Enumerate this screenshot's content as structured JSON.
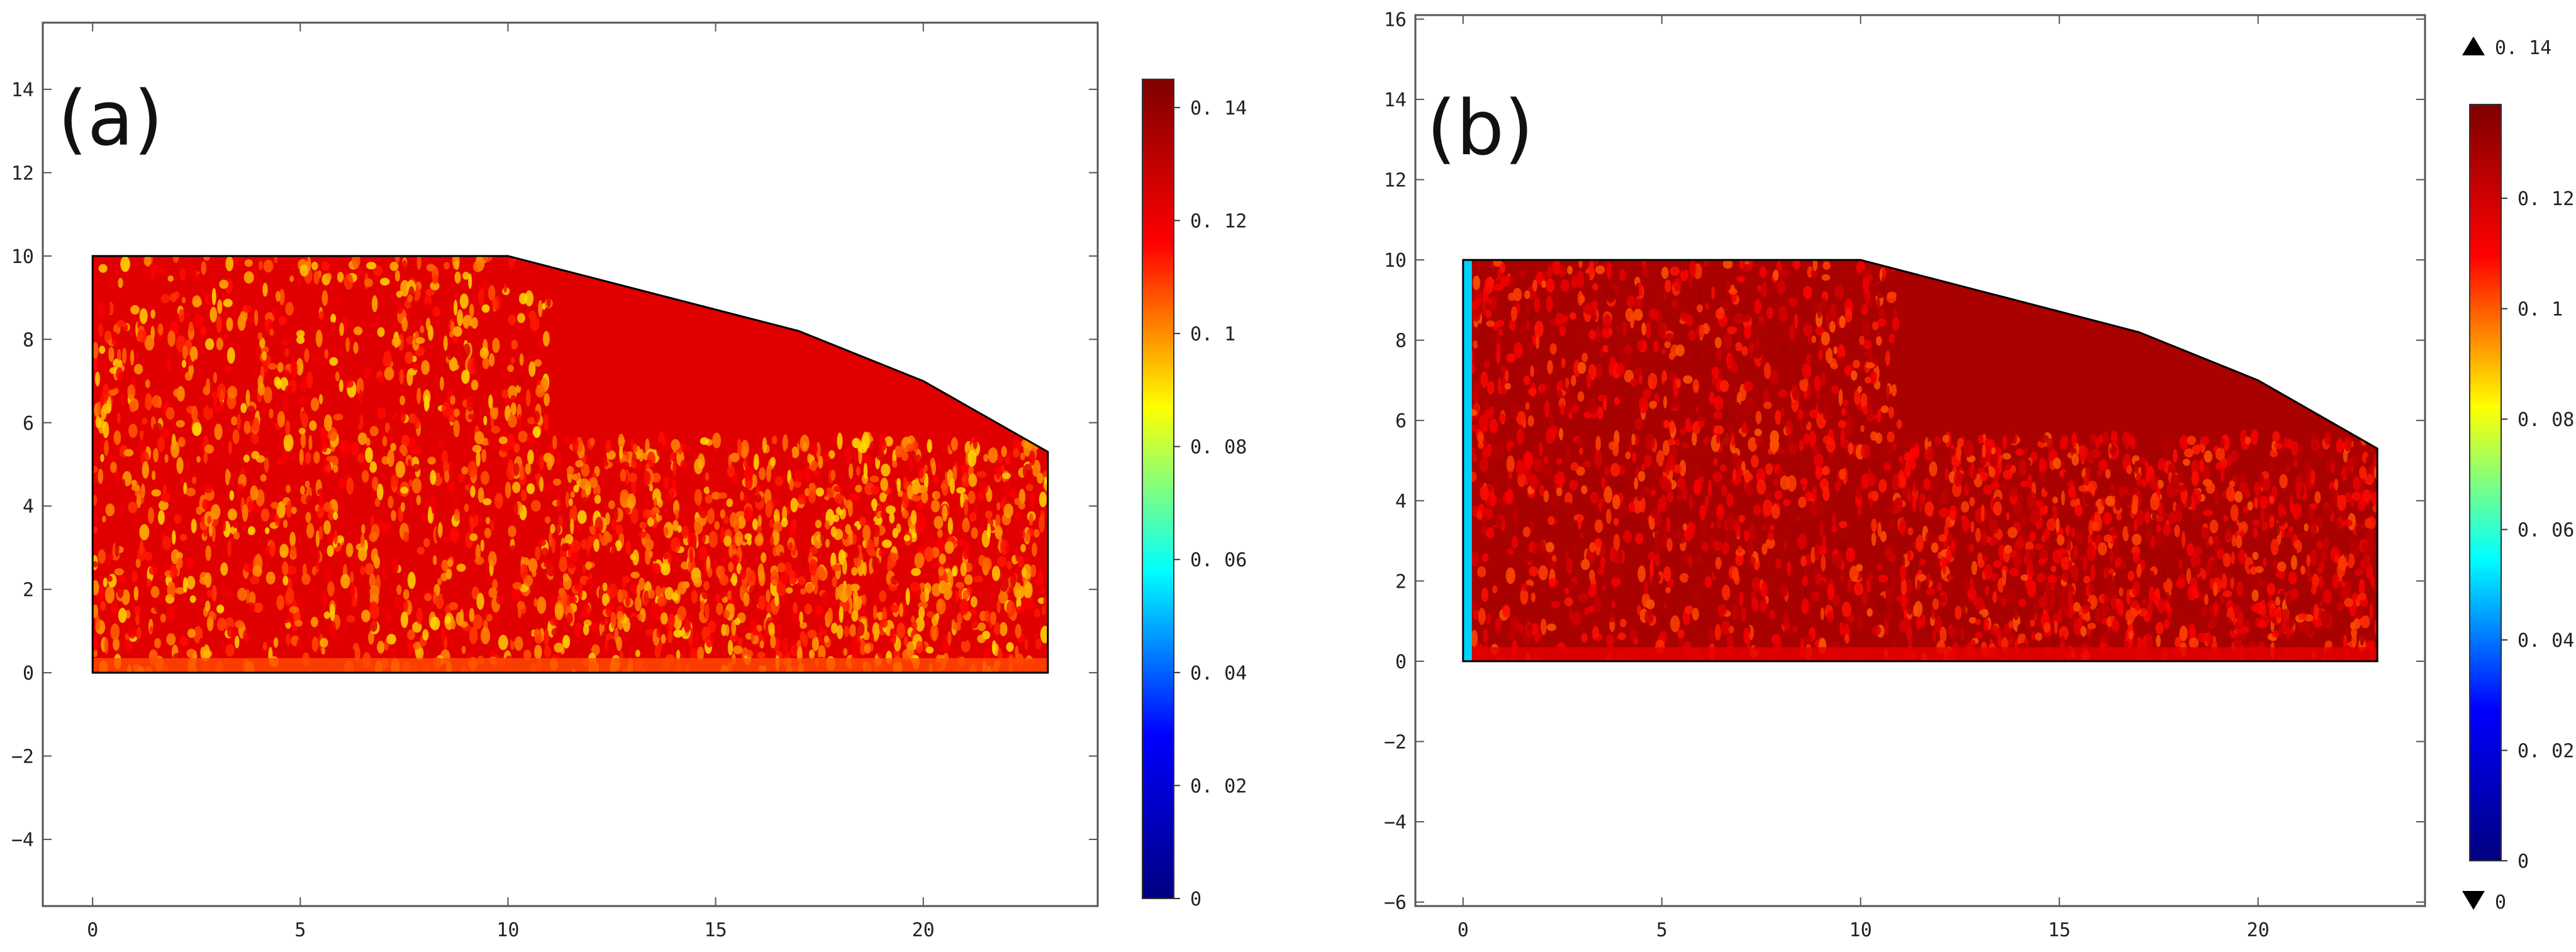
{
  "figure": {
    "background": "#ffffff"
  },
  "chart_data": [
    {
      "type": "heatmap",
      "panel_label": "(a)",
      "title": "",
      "xlabel": "",
      "ylabel": "",
      "xlim": [
        -1.2,
        24.2
      ],
      "ylim": [
        -5.6,
        15.6
      ],
      "xticks": [
        0,
        5,
        10,
        15,
        20
      ],
      "yticks": [
        -4,
        -2,
        0,
        2,
        4,
        6,
        8,
        10,
        12,
        14
      ],
      "grid": false,
      "domain_outline": [
        [
          0,
          0
        ],
        [
          23,
          0
        ],
        [
          23,
          5.3
        ],
        [
          20,
          7
        ],
        [
          17,
          8.2
        ],
        [
          10,
          10
        ],
        [
          0,
          10
        ]
      ],
      "field_base_value": 0.123,
      "field_texture_range": [
        0.09,
        0.125
      ],
      "colorbar": {
        "min": 0,
        "max": 0.145,
        "ticks": [
          0,
          0.02,
          0.04,
          0.06,
          0.08,
          0.1,
          0.12,
          0.14
        ],
        "tick_labels": [
          "0",
          "0. 02",
          "0. 04",
          "0. 06",
          "0. 08",
          "0. 1",
          "0. 12",
          "0. 14"
        ],
        "range_labels": [],
        "colormap": [
          "#00007f",
          "#0000ff",
          "#00ffff",
          "#ffff00",
          "#ff0000",
          "#7f0000"
        ]
      }
    },
    {
      "type": "heatmap",
      "panel_label": "(b)",
      "title": "",
      "xlabel": "",
      "ylabel": "",
      "xlim": [
        -1.2,
        24.2
      ],
      "ylim": [
        -6.1,
        16.1
      ],
      "xticks": [
        0,
        5,
        10,
        15,
        20
      ],
      "yticks": [
        -6,
        -4,
        -2,
        0,
        2,
        4,
        6,
        8,
        10,
        12,
        14,
        16
      ],
      "grid": false,
      "domain_outline": [
        [
          0,
          0
        ],
        [
          23,
          0
        ],
        [
          23,
          5.3
        ],
        [
          20,
          7
        ],
        [
          17,
          8.2
        ],
        [
          10,
          10
        ],
        [
          0,
          10
        ]
      ],
      "field_base_value": 0.128,
      "field_texture_range": [
        0.1,
        0.13
      ],
      "left_edge_value": 0.05,
      "colorbar": {
        "min": 0,
        "max": 0.137,
        "ticks": [
          0,
          0.02,
          0.04,
          0.06,
          0.08,
          0.1,
          0.12
        ],
        "tick_labels": [
          "0",
          "0. 02",
          "0. 04",
          "0. 06",
          "0. 08",
          "0. 1",
          "0. 12"
        ],
        "range_labels": [
          "0. 14",
          "0"
        ],
        "colormap": [
          "#00007f",
          "#0000ff",
          "#00ffff",
          "#ffff00",
          "#ff0000",
          "#7f0000"
        ]
      }
    }
  ]
}
